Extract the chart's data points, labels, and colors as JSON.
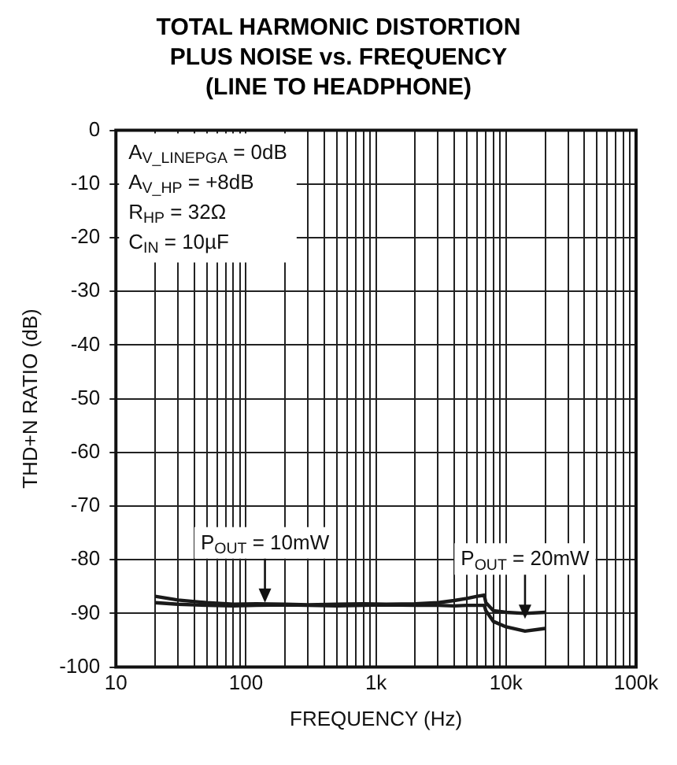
{
  "chart_data": {
    "type": "line",
    "title": "TOTAL HARMONIC DISTORTION\nPLUS NOISE vs. FREQUENCY\n(LINE TO HEADPHONE)",
    "xlabel": "FREQUENCY (Hz)",
    "ylabel": "THD+N RATIO (dB)",
    "log": "x",
    "grid": true,
    "legend": false,
    "marker": "none",
    "line_style": "solid",
    "xlim": [
      10,
      100000
    ],
    "ylim": [
      -100,
      0
    ],
    "xticks": [
      {
        "value": 10,
        "label": "10"
      },
      {
        "value": 20,
        "label": null
      },
      {
        "value": 30,
        "label": null
      },
      {
        "value": 40,
        "label": null
      },
      {
        "value": 50,
        "label": null
      },
      {
        "value": 60,
        "label": null
      },
      {
        "value": 70,
        "label": null
      },
      {
        "value": 80,
        "label": null
      },
      {
        "value": 90,
        "label": null
      },
      {
        "value": 100,
        "label": "100"
      },
      {
        "value": 200,
        "label": null
      },
      {
        "value": 300,
        "label": null
      },
      {
        "value": 400,
        "label": null
      },
      {
        "value": 500,
        "label": null
      },
      {
        "value": 600,
        "label": null
      },
      {
        "value": 700,
        "label": null
      },
      {
        "value": 800,
        "label": null
      },
      {
        "value": 900,
        "label": null
      },
      {
        "value": 1000,
        "label": "1k"
      },
      {
        "value": 2000,
        "label": null
      },
      {
        "value": 3000,
        "label": null
      },
      {
        "value": 4000,
        "label": null
      },
      {
        "value": 5000,
        "label": null
      },
      {
        "value": 6000,
        "label": null
      },
      {
        "value": 7000,
        "label": null
      },
      {
        "value": 8000,
        "label": null
      },
      {
        "value": 9000,
        "label": null
      },
      {
        "value": 10000,
        "label": "10k"
      },
      {
        "value": 20000,
        "label": null
      },
      {
        "value": 30000,
        "label": null
      },
      {
        "value": 40000,
        "label": null
      },
      {
        "value": 50000,
        "label": null
      },
      {
        "value": 60000,
        "label": null
      },
      {
        "value": 70000,
        "label": null
      },
      {
        "value": 80000,
        "label": null
      },
      {
        "value": 90000,
        "label": null
      },
      {
        "value": 100000,
        "label": "100k"
      }
    ],
    "yticks": [
      0,
      -10,
      -20,
      -30,
      -40,
      -50,
      -60,
      -70,
      -80,
      -90,
      -100
    ],
    "series": [
      {
        "color": "#1a1a1a",
        "x": [
          20,
          30,
          50,
          80,
          120,
          200,
          300,
          500,
          800,
          1200,
          2000,
          3000,
          4000,
          5000,
          6000,
          6800,
          7000,
          8000,
          10000,
          14000,
          20000
        ],
        "values": [
          -86.8,
          -87.5,
          -88,
          -88.3,
          -88.2,
          -88.3,
          -88.4,
          -88.3,
          -88.2,
          -88.3,
          -88.2,
          -88.0,
          -87.6,
          -87.2,
          -86.8,
          -86.6,
          -88,
          -89.5,
          -89.8,
          -90,
          -89.8
        ]
      },
      {
        "color": "#1a1a1a",
        "x": [
          20,
          30,
          50,
          80,
          120,
          200,
          300,
          500,
          800,
          1200,
          2000,
          3000,
          4000,
          5000,
          6000,
          6800,
          7000,
          8000,
          10000,
          14000,
          20000
        ],
        "values": [
          -88,
          -88.3,
          -88.5,
          -88.6,
          -88.5,
          -88.4,
          -88.5,
          -88.6,
          -88.5,
          -88.4,
          -88.5,
          -88.5,
          -88.6,
          -88.5,
          -88.5,
          -88.5,
          -89.5,
          -91.5,
          -92.5,
          -93.3,
          -92.8
        ]
      }
    ],
    "annotations": [
      "A$_{V_LINEPGA}$ = 0dB",
      "A$_{V_HP}$ = +8dB",
      "R$_{HP}$ = 32Ω",
      "C$_{IN}$ = 10µF",
      {
        "text": "P$_{OUT}$ = 10mW",
        "x": 140,
        "y": -88
      },
      {
        "text": "P$_{OUT}$ = 20mW",
        "x": 14000,
        "y": -91
      }
    ]
  }
}
